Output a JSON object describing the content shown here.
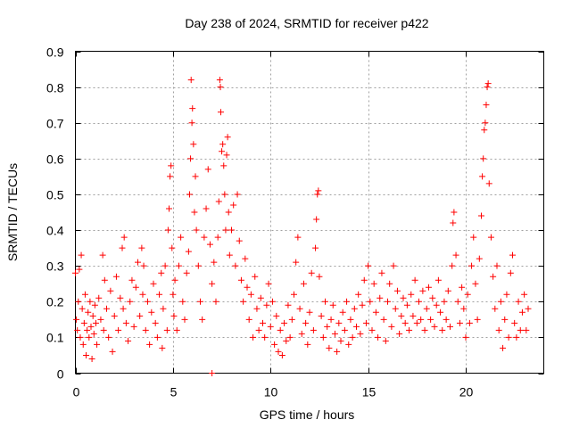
{
  "chart_data": {
    "type": "scatter",
    "title": "Day 238 of 2024, SRMTID for receiver p422",
    "xlabel": "GPS time / hours",
    "ylabel": "SRMTID / TECUs",
    "xlim": [
      0,
      24
    ],
    "ylim": [
      0,
      0.9
    ],
    "xticks": [
      0,
      5,
      10,
      15,
      20
    ],
    "yticks": [
      0,
      0.1,
      0.2,
      0.3,
      0.4,
      0.5,
      0.6,
      0.7,
      0.8,
      0.9
    ],
    "xtick_labels": [
      "0",
      "5",
      "10",
      "15",
      "20"
    ],
    "ytick_labels": [
      "0",
      "0.1",
      "0.2",
      "0.3",
      "0.4",
      "0.5",
      "0.6",
      "0.7",
      "0.8",
      "0.9"
    ],
    "grid": true,
    "marker": "+",
    "color": "#ff0000",
    "series": [
      {
        "name": "SRMTID",
        "points": [
          [
            0.0,
            0.28
          ],
          [
            0.05,
            0.15
          ],
          [
            0.1,
            0.12
          ],
          [
            0.15,
            0.2
          ],
          [
            0.2,
            0.29
          ],
          [
            0.25,
            0.1
          ],
          [
            0.3,
            0.33
          ],
          [
            0.35,
            0.18
          ],
          [
            0.4,
            0.08
          ],
          [
            0.45,
            0.14
          ],
          [
            0.5,
            0.22
          ],
          [
            0.55,
            0.05
          ],
          [
            0.6,
            0.12
          ],
          [
            0.65,
            0.17
          ],
          [
            0.7,
            0.1
          ],
          [
            0.75,
            0.2
          ],
          [
            0.8,
            0.13
          ],
          [
            0.85,
            0.04
          ],
          [
            0.9,
            0.16
          ],
          [
            0.95,
            0.11
          ],
          [
            1.0,
            0.19
          ],
          [
            1.05,
            0.14
          ],
          [
            1.1,
            0.08
          ],
          [
            1.2,
            0.21
          ],
          [
            1.3,
            0.15
          ],
          [
            1.4,
            0.33
          ],
          [
            1.45,
            0.12
          ],
          [
            1.5,
            0.26
          ],
          [
            1.6,
            0.18
          ],
          [
            1.7,
            0.1
          ],
          [
            1.8,
            0.23
          ],
          [
            1.9,
            0.06
          ],
          [
            2.0,
            0.16
          ],
          [
            2.1,
            0.27
          ],
          [
            2.2,
            0.12
          ],
          [
            2.3,
            0.21
          ],
          [
            2.4,
            0.35
          ],
          [
            2.45,
            0.18
          ],
          [
            2.5,
            0.38
          ],
          [
            2.6,
            0.14
          ],
          [
            2.7,
            0.09
          ],
          [
            2.8,
            0.2
          ],
          [
            2.9,
            0.26
          ],
          [
            3.0,
            0.13
          ],
          [
            3.1,
            0.24
          ],
          [
            3.2,
            0.31
          ],
          [
            3.3,
            0.16
          ],
          [
            3.4,
            0.35
          ],
          [
            3.45,
            0.22
          ],
          [
            3.5,
            0.3
          ],
          [
            3.6,
            0.12
          ],
          [
            3.7,
            0.2
          ],
          [
            3.8,
            0.08
          ],
          [
            3.9,
            0.17
          ],
          [
            4.0,
            0.25
          ],
          [
            4.1,
            0.14
          ],
          [
            4.2,
            0.1
          ],
          [
            4.3,
            0.22
          ],
          [
            4.4,
            0.28
          ],
          [
            4.45,
            0.07
          ],
          [
            4.5,
            0.18
          ],
          [
            4.6,
            0.3
          ],
          [
            4.7,
            0.12
          ],
          [
            4.75,
            0.4
          ],
          [
            4.8,
            0.46
          ],
          [
            4.85,
            0.55
          ],
          [
            4.9,
            0.58
          ],
          [
            4.95,
            0.35
          ],
          [
            5.0,
            0.22
          ],
          [
            5.05,
            0.16
          ],
          [
            5.1,
            0.26
          ],
          [
            5.2,
            0.12
          ],
          [
            5.3,
            0.3
          ],
          [
            5.4,
            0.38
          ],
          [
            5.5,
            0.2
          ],
          [
            5.6,
            0.15
          ],
          [
            5.7,
            0.28
          ],
          [
            5.8,
            0.34
          ],
          [
            5.85,
            0.5
          ],
          [
            5.9,
            0.6
          ],
          [
            5.93,
            0.82
          ],
          [
            5.97,
            0.7
          ],
          [
            6.0,
            0.74
          ],
          [
            6.05,
            0.64
          ],
          [
            6.1,
            0.45
          ],
          [
            6.15,
            0.55
          ],
          [
            6.2,
            0.4
          ],
          [
            6.3,
            0.3
          ],
          [
            6.4,
            0.2
          ],
          [
            6.5,
            0.15
          ],
          [
            6.6,
            0.38
          ],
          [
            6.7,
            0.46
          ],
          [
            6.8,
            0.57
          ],
          [
            6.9,
            0.36
          ],
          [
            7.0,
            0.25
          ],
          [
            7.1,
            0.31
          ],
          [
            7.2,
            0.2
          ],
          [
            7.3,
            0.38
          ],
          [
            7.35,
            0.48
          ],
          [
            7.4,
            0.82
          ],
          [
            7.43,
            0.8
          ],
          [
            7.45,
            0.73
          ],
          [
            7.5,
            0.62
          ],
          [
            7.55,
            0.64
          ],
          [
            7.6,
            0.58
          ],
          [
            7.65,
            0.5
          ],
          [
            7.7,
            0.4
          ],
          [
            7.75,
            0.61
          ],
          [
            7.8,
            0.66
          ],
          [
            7.85,
            0.45
          ],
          [
            7.9,
            0.33
          ],
          [
            8.0,
            0.4
          ],
          [
            8.1,
            0.47
          ],
          [
            8.2,
            0.3
          ],
          [
            8.3,
            0.5
          ],
          [
            8.4,
            0.37
          ],
          [
            8.5,
            0.26
          ],
          [
            8.6,
            0.2
          ],
          [
            8.7,
            0.32
          ],
          [
            8.8,
            0.24
          ],
          [
            8.9,
            0.15
          ],
          [
            9.0,
            0.22
          ],
          [
            9.1,
            0.1
          ],
          [
            9.2,
            0.27
          ],
          [
            9.3,
            0.18
          ],
          [
            9.4,
            0.12
          ],
          [
            9.5,
            0.21
          ],
          [
            9.6,
            0.14
          ],
          [
            9.7,
            0.1
          ],
          [
            9.8,
            0.19
          ],
          [
            9.9,
            0.25
          ],
          [
            10.0,
            0.13
          ],
          [
            10.1,
            0.2
          ],
          [
            10.2,
            0.08
          ],
          [
            10.3,
            0.16
          ],
          [
            10.4,
            0.06
          ],
          [
            10.5,
            0.12
          ],
          [
            10.6,
            0.05
          ],
          [
            10.7,
            0.14
          ],
          [
            10.8,
            0.09
          ],
          [
            10.9,
            0.19
          ],
          [
            11.0,
            0.1
          ],
          [
            11.1,
            0.15
          ],
          [
            11.2,
            0.22
          ],
          [
            11.3,
            0.31
          ],
          [
            11.4,
            0.38
          ],
          [
            11.5,
            0.18
          ],
          [
            11.6,
            0.11
          ],
          [
            11.7,
            0.25
          ],
          [
            11.8,
            0.14
          ],
          [
            11.9,
            0.08
          ],
          [
            12.0,
            0.17
          ],
          [
            12.1,
            0.28
          ],
          [
            12.2,
            0.12
          ],
          [
            12.3,
            0.35
          ],
          [
            12.35,
            0.43
          ],
          [
            12.4,
            0.5
          ],
          [
            12.45,
            0.51
          ],
          [
            12.5,
            0.27
          ],
          [
            12.6,
            0.16
          ],
          [
            12.7,
            0.1
          ],
          [
            12.8,
            0.2
          ],
          [
            12.9,
            0.13
          ],
          [
            13.0,
            0.07
          ],
          [
            13.1,
            0.15
          ],
          [
            13.2,
            0.19
          ],
          [
            13.3,
            0.11
          ],
          [
            13.4,
            0.06
          ],
          [
            13.5,
            0.14
          ],
          [
            13.6,
            0.09
          ],
          [
            13.7,
            0.17
          ],
          [
            13.8,
            0.12
          ],
          [
            13.9,
            0.2
          ],
          [
            14.0,
            0.08
          ],
          [
            14.1,
            0.15
          ],
          [
            14.2,
            0.1
          ],
          [
            14.3,
            0.18
          ],
          [
            14.4,
            0.13
          ],
          [
            14.5,
            0.22
          ],
          [
            14.6,
            0.11
          ],
          [
            14.7,
            0.19
          ],
          [
            14.8,
            0.26
          ],
          [
            14.9,
            0.14
          ],
          [
            15.0,
            0.3
          ],
          [
            15.1,
            0.2
          ],
          [
            15.2,
            0.12
          ],
          [
            15.3,
            0.25
          ],
          [
            15.4,
            0.17
          ],
          [
            15.5,
            0.1
          ],
          [
            15.6,
            0.21
          ],
          [
            15.7,
            0.28
          ],
          [
            15.8,
            0.15
          ],
          [
            15.9,
            0.09
          ],
          [
            16.0,
            0.2
          ],
          [
            16.1,
            0.25
          ],
          [
            16.2,
            0.13
          ],
          [
            16.3,
            0.3
          ],
          [
            16.4,
            0.18
          ],
          [
            16.5,
            0.23
          ],
          [
            16.6,
            0.11
          ],
          [
            16.7,
            0.16
          ],
          [
            16.8,
            0.21
          ],
          [
            16.9,
            0.14
          ],
          [
            17.0,
            0.19
          ],
          [
            17.1,
            0.12
          ],
          [
            17.2,
            0.22
          ],
          [
            17.3,
            0.16
          ],
          [
            17.4,
            0.26
          ],
          [
            17.5,
            0.14
          ],
          [
            17.6,
            0.2
          ],
          [
            17.7,
            0.15
          ],
          [
            17.8,
            0.23
          ],
          [
            17.9,
            0.12
          ],
          [
            18.0,
            0.18
          ],
          [
            18.1,
            0.24
          ],
          [
            18.2,
            0.15
          ],
          [
            18.3,
            0.21
          ],
          [
            18.4,
            0.13
          ],
          [
            18.5,
            0.19
          ],
          [
            18.6,
            0.26
          ],
          [
            18.7,
            0.17
          ],
          [
            18.8,
            0.12
          ],
          [
            18.9,
            0.2
          ],
          [
            19.0,
            0.15
          ],
          [
            19.1,
            0.23
          ],
          [
            19.2,
            0.13
          ],
          [
            19.3,
            0.3
          ],
          [
            19.35,
            0.42
          ],
          [
            19.4,
            0.45
          ],
          [
            19.5,
            0.33
          ],
          [
            19.6,
            0.2
          ],
          [
            19.7,
            0.14
          ],
          [
            19.8,
            0.24
          ],
          [
            19.9,
            0.18
          ],
          [
            20.0,
            0.1
          ],
          [
            20.1,
            0.22
          ],
          [
            20.2,
            0.14
          ],
          [
            20.3,
            0.3
          ],
          [
            20.4,
            0.38
          ],
          [
            20.5,
            0.25
          ],
          [
            20.6,
            0.15
          ],
          [
            20.7,
            0.32
          ],
          [
            20.8,
            0.44
          ],
          [
            20.85,
            0.55
          ],
          [
            20.9,
            0.6
          ],
          [
            20.95,
            0.68
          ],
          [
            21.0,
            0.7
          ],
          [
            21.05,
            0.75
          ],
          [
            21.1,
            0.8
          ],
          [
            21.15,
            0.81
          ],
          [
            21.2,
            0.53
          ],
          [
            21.3,
            0.38
          ],
          [
            21.4,
            0.27
          ],
          [
            21.5,
            0.18
          ],
          [
            21.6,
            0.3
          ],
          [
            21.7,
            0.12
          ],
          [
            21.8,
            0.2
          ],
          [
            21.9,
            0.07
          ],
          [
            22.0,
            0.15
          ],
          [
            22.1,
            0.22
          ],
          [
            22.2,
            0.1
          ],
          [
            22.3,
            0.28
          ],
          [
            22.4,
            0.33
          ],
          [
            22.5,
            0.14
          ],
          [
            22.6,
            0.1
          ],
          [
            22.7,
            0.2
          ],
          [
            22.8,
            0.12
          ],
          [
            22.9,
            0.17
          ],
          [
            23.0,
            0.22
          ],
          [
            23.1,
            0.12
          ],
          [
            23.2,
            0.18
          ],
          [
            7.0,
            0.0
          ]
        ]
      }
    ]
  }
}
